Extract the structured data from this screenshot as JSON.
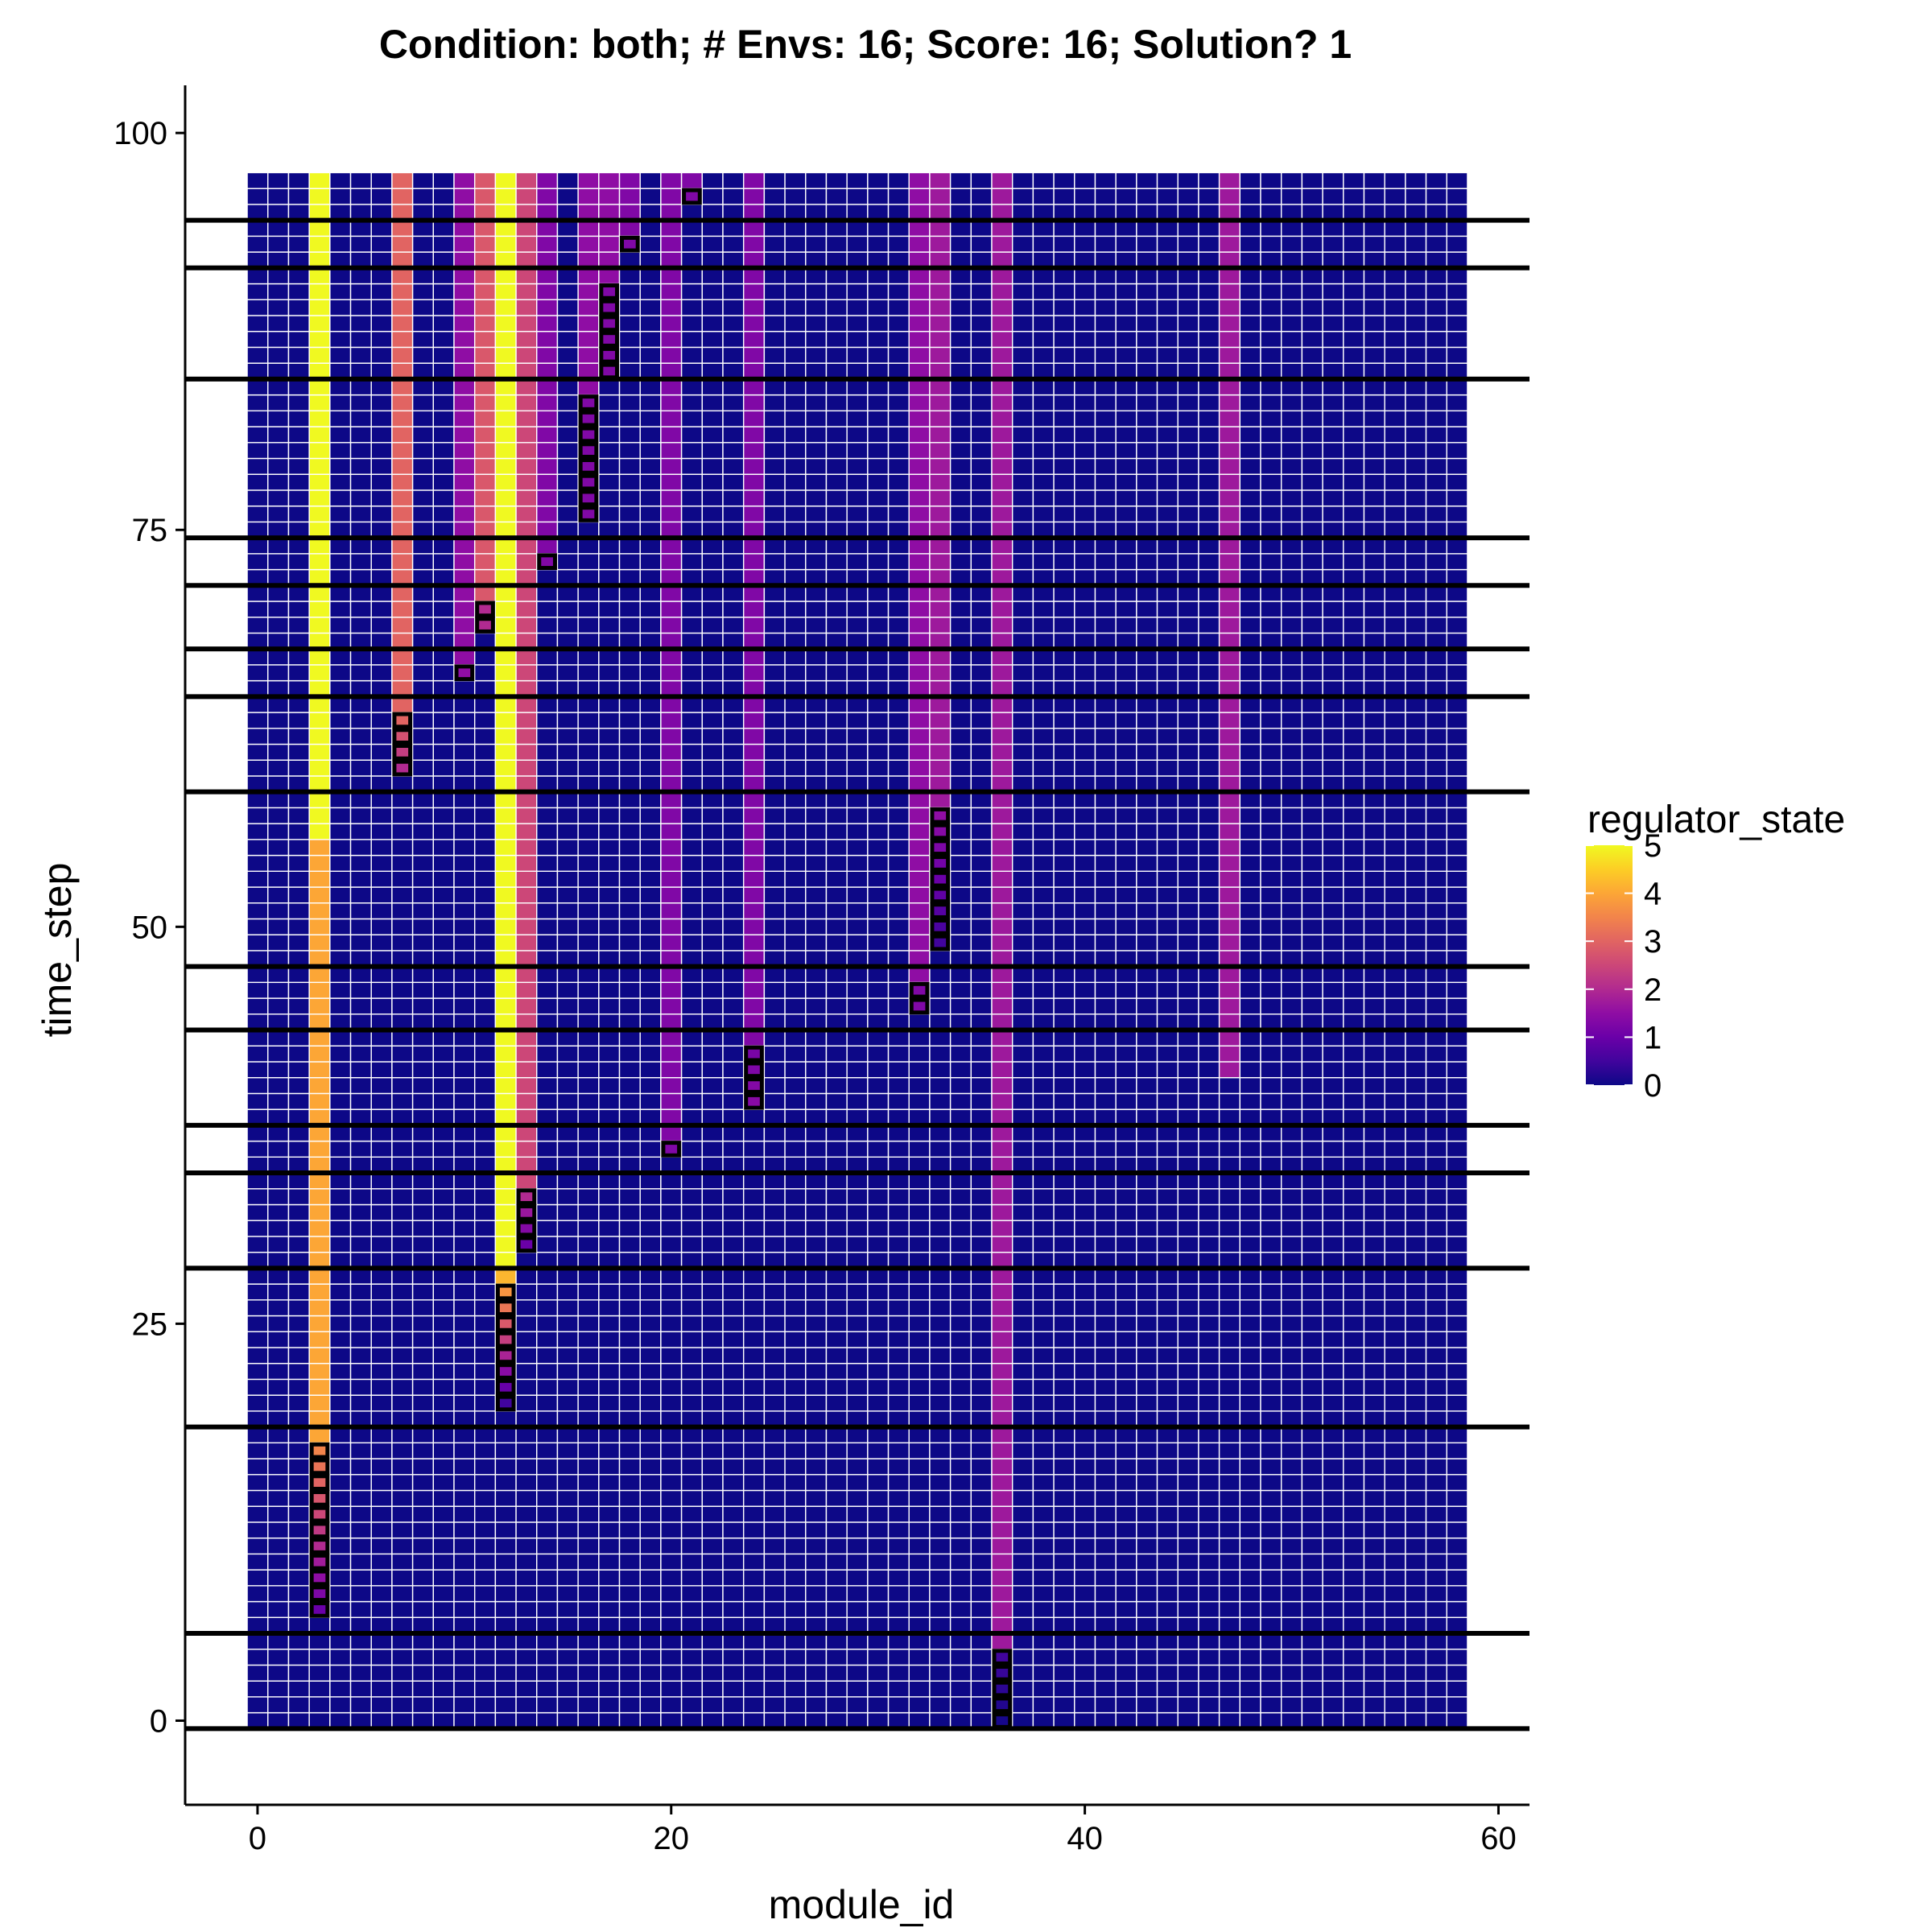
{
  "chart_data": {
    "type": "heatmap",
    "title": "Condition: both; # Envs: 16; Score: 16; Solution? 1",
    "xlabel": "module_id",
    "ylabel": "time_step",
    "xlim": [
      -3.5,
      61.5
    ],
    "ylim": [
      -5.3,
      103
    ],
    "x_ticks": [
      0,
      20,
      40,
      60
    ],
    "y_ticks": [
      0,
      25,
      50,
      75,
      100
    ],
    "grid": false,
    "n_modules": 59,
    "n_time_steps": 98,
    "base_value": 0,
    "legend": {
      "title": "regulator_state",
      "position": "right",
      "min": 0,
      "max": 5,
      "ticks": [
        0,
        1,
        2,
        3,
        4,
        5
      ],
      "colormap": "plasma"
    },
    "columns": [
      {
        "module_id": 3,
        "segments": [
          {
            "from": 7,
            "to": 17,
            "value": [
              1,
              3.5
            ]
          },
          {
            "from": 18,
            "to": 55,
            "value": 4
          },
          {
            "from": 56,
            "to": 97,
            "value": 5
          }
        ]
      },
      {
        "module_id": 7,
        "segments": [
          {
            "from": 60,
            "to": 63,
            "value": [
              2,
              3
            ]
          },
          {
            "from": 64,
            "to": 97,
            "value": 3
          }
        ]
      },
      {
        "module_id": 10,
        "segments": [
          {
            "from": 66,
            "to": 97,
            "value": 1.5
          }
        ]
      },
      {
        "module_id": 11,
        "segments": [
          {
            "from": 69,
            "to": 70,
            "value": 2
          },
          {
            "from": 71,
            "to": 97,
            "value": 2.8
          }
        ]
      },
      {
        "module_id": 12,
        "segments": [
          {
            "from": 20,
            "to": 28,
            "value": [
              0.5,
              4.2
            ]
          },
          {
            "from": 29,
            "to": 97,
            "value": 5
          }
        ]
      },
      {
        "module_id": 13,
        "segments": [
          {
            "from": 30,
            "to": 33,
            "value": [
              1,
              2
            ]
          },
          {
            "from": 34,
            "to": 97,
            "value": 2.5
          }
        ]
      },
      {
        "module_id": 14,
        "segments": [
          {
            "from": 73,
            "to": 97,
            "value": 1.3
          }
        ]
      },
      {
        "module_id": 16,
        "segments": [
          {
            "from": 76,
            "to": 83,
            "value": 1.3
          },
          {
            "from": 84,
            "to": 97,
            "value": 1.5
          }
        ]
      },
      {
        "module_id": 17,
        "segments": [
          {
            "from": 85,
            "to": 90,
            "value": 1.3
          },
          {
            "from": 91,
            "to": 97,
            "value": 1.5
          }
        ]
      },
      {
        "module_id": 18,
        "segments": [
          {
            "from": 93,
            "to": 97,
            "value": 1.3
          }
        ]
      },
      {
        "module_id": 20,
        "segments": [
          {
            "from": 36,
            "to": 97,
            "value": 1.3
          }
        ]
      },
      {
        "module_id": 21,
        "segments": [
          {
            "from": 96,
            "to": 97,
            "value": 1.3
          }
        ]
      },
      {
        "module_id": 24,
        "segments": [
          {
            "from": 39,
            "to": 42,
            "value": [
              1.4,
              1.2
            ]
          },
          {
            "from": 43,
            "to": 97,
            "value": 1.3
          }
        ]
      },
      {
        "module_id": 32,
        "segments": [
          {
            "from": 45,
            "to": 46,
            "value": 1.3
          },
          {
            "from": 47,
            "to": 97,
            "value": 1.5
          }
        ]
      },
      {
        "module_id": 33,
        "segments": [
          {
            "from": 49,
            "to": 57,
            "value": [
              0.5,
              1.5
            ]
          },
          {
            "from": 58,
            "to": 97,
            "value": 1.7
          }
        ]
      },
      {
        "module_id": 36,
        "segments": [
          {
            "from": 0,
            "to": 4,
            "value": [
              0.1,
              0.5
            ]
          },
          {
            "from": 5,
            "to": 97,
            "value": 1.7
          }
        ]
      },
      {
        "module_id": 47,
        "segments": [
          {
            "from": 41,
            "to": 97,
            "value": 1.7
          }
        ]
      }
    ],
    "outlined_cells": [
      {
        "module_id": 3,
        "from": 7,
        "to": 17
      },
      {
        "module_id": 7,
        "from": 60,
        "to": 63
      },
      {
        "module_id": 10,
        "from": 66,
        "to": 66
      },
      {
        "module_id": 11,
        "from": 69,
        "to": 70
      },
      {
        "module_id": 12,
        "from": 20,
        "to": 27
      },
      {
        "module_id": 13,
        "from": 30,
        "to": 33
      },
      {
        "module_id": 14,
        "from": 73,
        "to": 73
      },
      {
        "module_id": 16,
        "from": 76,
        "to": 83
      },
      {
        "module_id": 17,
        "from": 85,
        "to": 90
      },
      {
        "module_id": 18,
        "from": 93,
        "to": 93
      },
      {
        "module_id": 20,
        "from": 36,
        "to": 36
      },
      {
        "module_id": 21,
        "from": 96,
        "to": 96
      },
      {
        "module_id": 24,
        "from": 39,
        "to": 42
      },
      {
        "module_id": 32,
        "from": 45,
        "to": 46
      },
      {
        "module_id": 33,
        "from": 49,
        "to": 57
      },
      {
        "module_id": 36,
        "from": 0,
        "to": 4
      }
    ],
    "env_change_lines": [
      -0.5,
      5.5,
      18.5,
      28.5,
      34.5,
      37.5,
      43.5,
      47.5,
      58.5,
      64.5,
      67.5,
      71.5,
      74.5,
      84.5,
      91.5,
      94.5
    ]
  }
}
